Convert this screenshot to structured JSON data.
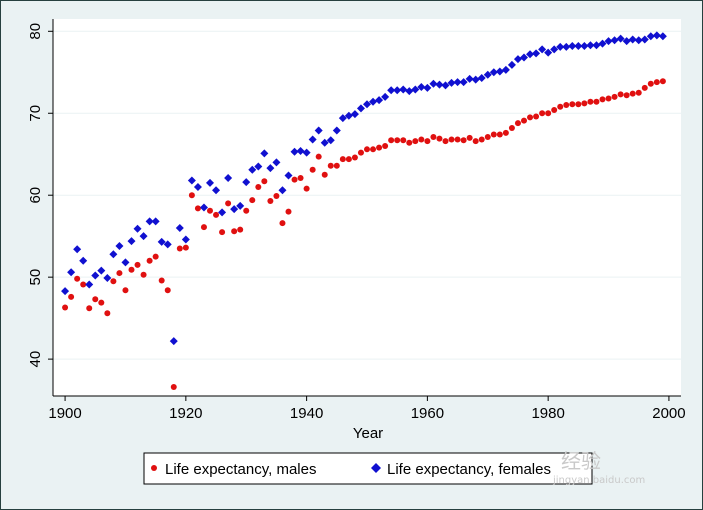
{
  "chart_data": {
    "type": "scatter",
    "xlabel": "Year",
    "ylabel": "",
    "xlim": [
      1898,
      2002
    ],
    "ylim": [
      35.5,
      81.5
    ],
    "xticks": [
      1900,
      1920,
      1940,
      1960,
      1980,
      2000
    ],
    "yticks": [
      40,
      50,
      60,
      70,
      80
    ],
    "grid": "horizontal",
    "legend_position": "bottom",
    "x": [
      1900,
      1901,
      1902,
      1903,
      1904,
      1905,
      1906,
      1907,
      1908,
      1909,
      1910,
      1911,
      1912,
      1913,
      1914,
      1915,
      1916,
      1917,
      1918,
      1919,
      1920,
      1921,
      1922,
      1923,
      1924,
      1925,
      1926,
      1927,
      1928,
      1929,
      1930,
      1931,
      1932,
      1933,
      1934,
      1935,
      1936,
      1937,
      1938,
      1939,
      1940,
      1941,
      1942,
      1943,
      1944,
      1945,
      1946,
      1947,
      1948,
      1949,
      1950,
      1951,
      1952,
      1953,
      1954,
      1955,
      1956,
      1957,
      1958,
      1959,
      1960,
      1961,
      1962,
      1963,
      1964,
      1965,
      1966,
      1967,
      1968,
      1969,
      1970,
      1971,
      1972,
      1973,
      1974,
      1975,
      1976,
      1977,
      1978,
      1979,
      1980,
      1981,
      1982,
      1983,
      1984,
      1985,
      1986,
      1987,
      1988,
      1989,
      1990,
      1991,
      1992,
      1993,
      1994,
      1995,
      1996,
      1997,
      1998,
      1999
    ],
    "series": [
      {
        "name": "Life expectancy, males",
        "color": "#e01010",
        "marker": "circle",
        "values": [
          46.3,
          47.6,
          49.8,
          49.1,
          46.2,
          47.3,
          46.9,
          45.6,
          49.5,
          50.5,
          48.4,
          50.9,
          51.5,
          50.3,
          52.0,
          52.5,
          49.6,
          48.4,
          36.6,
          53.5,
          53.6,
          60.0,
          58.4,
          56.1,
          58.1,
          57.6,
          55.5,
          59.0,
          55.6,
          55.8,
          58.1,
          59.4,
          61.0,
          61.7,
          59.3,
          59.9,
          56.6,
          58.0,
          61.9,
          62.1,
          60.8,
          63.1,
          64.7,
          62.5,
          63.6,
          63.6,
          64.4,
          64.4,
          64.6,
          65.2,
          65.6,
          65.6,
          65.8,
          66.0,
          66.7,
          66.7,
          66.7,
          66.4,
          66.6,
          66.8,
          66.6,
          67.1,
          66.9,
          66.6,
          66.8,
          66.8,
          66.7,
          67.0,
          66.6,
          66.8,
          67.1,
          67.4,
          67.4,
          67.6,
          68.2,
          68.8,
          69.1,
          69.5,
          69.6,
          70.0,
          70.0,
          70.4,
          70.8,
          71.0,
          71.1,
          71.1,
          71.2,
          71.4,
          71.4,
          71.7,
          71.8,
          72.0,
          72.3,
          72.2,
          72.4,
          72.5,
          73.1,
          73.6,
          73.8,
          73.9
        ]
      },
      {
        "name": "Life expectancy, females",
        "color": "#1010d0",
        "marker": "diamond",
        "values": [
          48.3,
          50.6,
          53.4,
          52.0,
          49.1,
          50.2,
          50.8,
          49.9,
          52.8,
          53.8,
          51.8,
          54.4,
          55.9,
          55.0,
          56.8,
          56.8,
          54.3,
          54.0,
          42.2,
          56.0,
          54.6,
          61.8,
          61.0,
          58.5,
          61.5,
          60.6,
          57.9,
          62.1,
          58.3,
          58.7,
          61.6,
          63.1,
          63.5,
          65.1,
          63.3,
          64.0,
          60.6,
          62.4,
          65.3,
          65.4,
          65.2,
          66.8,
          67.9,
          66.4,
          66.7,
          67.9,
          69.4,
          69.7,
          69.9,
          70.6,
          71.1,
          71.4,
          71.6,
          72.0,
          72.8,
          72.8,
          72.9,
          72.7,
          72.9,
          73.2,
          73.1,
          73.6,
          73.5,
          73.4,
          73.7,
          73.8,
          73.8,
          74.2,
          74.1,
          74.3,
          74.7,
          75.0,
          75.1,
          75.3,
          75.9,
          76.6,
          76.8,
          77.2,
          77.3,
          77.8,
          77.4,
          77.8,
          78.1,
          78.1,
          78.2,
          78.2,
          78.2,
          78.3,
          78.3,
          78.5,
          78.8,
          78.9,
          79.1,
          78.8,
          79.0,
          78.9,
          79.0,
          79.4,
          79.5,
          79.4
        ]
      }
    ]
  },
  "watermark": {
    "text": "经验",
    "sub": "jingyan.baidu.com"
  }
}
